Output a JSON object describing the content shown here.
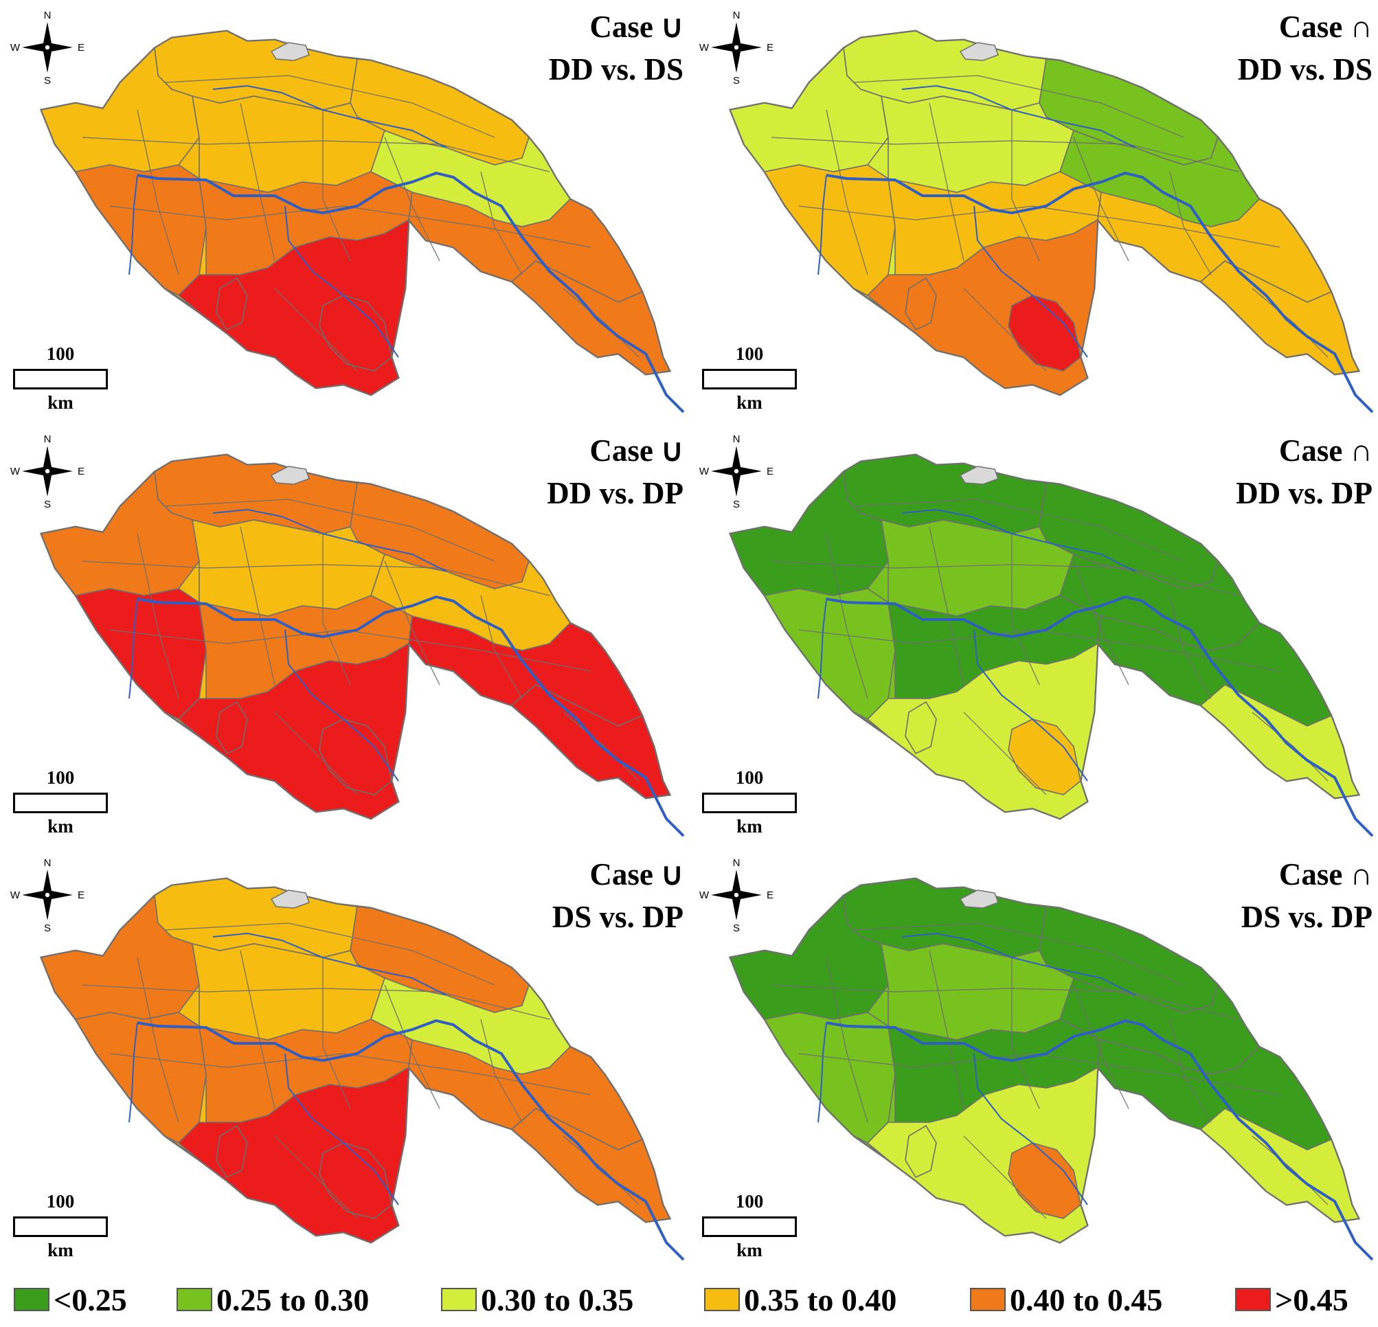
{
  "panels": [
    {
      "case_symbol": "Case ∪",
      "comparison": "DD vs. DS",
      "regions": {
        "nw_upper": "c4",
        "ne_upper": "c4",
        "mid_w": "c4",
        "mid_c": "c4",
        "mid_e": "c3",
        "south_w": "c5",
        "south_c": "c5",
        "south_e": "c5",
        "lobe": "c6",
        "east_tail": "c5",
        "hotspot": "c6",
        "accent": "c6"
      }
    },
    {
      "case_symbol": "Case ∩",
      "comparison": "DD vs. DS",
      "regions": {
        "nw_upper": "c3",
        "ne_upper": "c2",
        "mid_w": "c3",
        "mid_c": "c3",
        "mid_e": "c2",
        "south_w": "c4",
        "south_c": "c4",
        "south_e": "c4",
        "lobe": "c5",
        "east_tail": "c4",
        "hotspot": "c6",
        "accent": "c5"
      }
    },
    {
      "case_symbol": "Case ∪",
      "comparison": "DD vs. DP",
      "regions": {
        "nw_upper": "c5",
        "ne_upper": "c5",
        "mid_w": "c5",
        "mid_c": "c4",
        "mid_e": "c4",
        "south_w": "c6",
        "south_c": "c5",
        "south_e": "c6",
        "lobe": "c6",
        "east_tail": "c6",
        "hotspot": "c6",
        "accent": "c6"
      }
    },
    {
      "case_symbol": "Case ∩",
      "comparison": "DD vs. DP",
      "regions": {
        "nw_upper": "c1",
        "ne_upper": "c1",
        "mid_w": "c1",
        "mid_c": "c2",
        "mid_e": "c1",
        "south_w": "c2",
        "south_c": "c1",
        "south_e": "c1",
        "lobe": "c3",
        "east_tail": "c3",
        "hotspot": "c4",
        "accent": "c3"
      }
    },
    {
      "case_symbol": "Case ∪",
      "comparison": "DS vs. DP",
      "regions": {
        "nw_upper": "c4",
        "ne_upper": "c5",
        "mid_w": "c5",
        "mid_c": "c4",
        "mid_e": "c3",
        "south_w": "c5",
        "south_c": "c5",
        "south_e": "c5",
        "lobe": "c6",
        "east_tail": "c5",
        "hotspot": "c6",
        "accent": "c6"
      }
    },
    {
      "case_symbol": "Case ∩",
      "comparison": "DS vs. DP",
      "regions": {
        "nw_upper": "c1",
        "ne_upper": "c1",
        "mid_w": "c1",
        "mid_c": "c2",
        "mid_e": "c1",
        "south_w": "c2",
        "south_c": "c1",
        "south_e": "c1",
        "lobe": "c3",
        "east_tail": "c3",
        "hotspot": "c5",
        "accent": "c3"
      }
    }
  ],
  "compass": {
    "n": "N",
    "s": "S",
    "e": "E",
    "w": "W"
  },
  "scale": {
    "value": "100",
    "unit": "km"
  },
  "legend": [
    {
      "key": "c1",
      "label": "<0.25",
      "color": "#3a9e1c"
    },
    {
      "key": "c2",
      "label": "0.25  to 0.30",
      "color": "#77c21f"
    },
    {
      "key": "c3",
      "label": "0.30  to 0.35",
      "color": "#d4ec3a"
    },
    {
      "key": "c4",
      "label": "0.35  to 0.40",
      "color": "#f6bd10"
    },
    {
      "key": "c5",
      "label": "0.40  to 0.45",
      "color": "#f07a1a"
    },
    {
      "key": "c6",
      "label": ">0.45",
      "color": "#ec1c1c"
    }
  ],
  "colors": {
    "lake": "#d9d9d9",
    "river": "#2f5fc4",
    "border": "#6e6e6e"
  }
}
